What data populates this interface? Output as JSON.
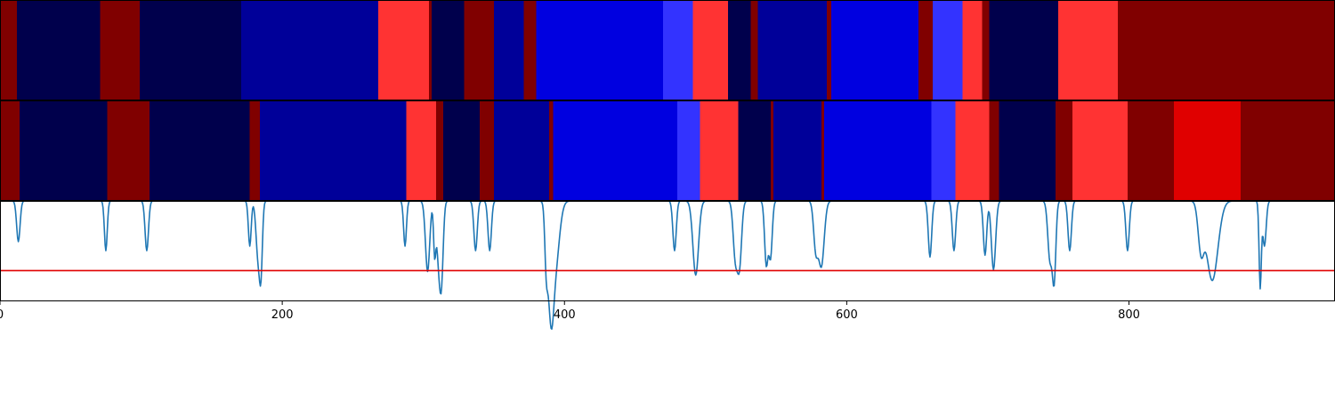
{
  "chart_data": [
    {
      "type": "heatmap",
      "palette": [
        "#00004c",
        "#000099",
        "#0000e0",
        "#3333ff",
        "#ff3333",
        "#e00000",
        "#800000"
      ],
      "segments": [
        [
          0,
          12,
          6
        ],
        [
          12,
          71,
          0
        ],
        [
          71,
          99,
          6
        ],
        [
          99,
          171,
          0
        ],
        [
          171,
          268,
          1
        ],
        [
          268,
          304,
          4
        ],
        [
          304,
          306,
          6
        ],
        [
          306,
          329,
          0
        ],
        [
          329,
          350,
          6
        ],
        [
          350,
          371,
          1
        ],
        [
          371,
          380,
          6
        ],
        [
          380,
          470,
          2
        ],
        [
          470,
          491,
          3
        ],
        [
          491,
          516,
          4
        ],
        [
          516,
          532,
          0
        ],
        [
          532,
          537,
          6
        ],
        [
          537,
          586,
          1
        ],
        [
          586,
          589,
          6
        ],
        [
          589,
          651,
          2
        ],
        [
          651,
          661,
          6
        ],
        [
          661,
          682,
          3
        ],
        [
          682,
          696,
          4
        ],
        [
          696,
          701,
          6
        ],
        [
          701,
          750,
          0
        ],
        [
          750,
          792,
          4
        ],
        [
          792,
          946,
          6
        ]
      ],
      "xlim": [
        0,
        946
      ]
    },
    {
      "type": "heatmap",
      "palette": [
        "#00004c",
        "#000099",
        "#0000e0",
        "#3333ff",
        "#ff3333",
        "#e00000",
        "#800000"
      ],
      "segments": [
        [
          0,
          14,
          6
        ],
        [
          14,
          76,
          0
        ],
        [
          76,
          106,
          6
        ],
        [
          106,
          177,
          0
        ],
        [
          177,
          184,
          6
        ],
        [
          184,
          288,
          1
        ],
        [
          288,
          309,
          4
        ],
        [
          309,
          314,
          6
        ],
        [
          314,
          340,
          0
        ],
        [
          340,
          350,
          6
        ],
        [
          350,
          389,
          1
        ],
        [
          389,
          392,
          6
        ],
        [
          392,
          480,
          2
        ],
        [
          480,
          496,
          3
        ],
        [
          496,
          523,
          4
        ],
        [
          523,
          546,
          0
        ],
        [
          546,
          548,
          6
        ],
        [
          548,
          582,
          1
        ],
        [
          582,
          584,
          6
        ],
        [
          584,
          660,
          2
        ],
        [
          660,
          677,
          3
        ],
        [
          677,
          701,
          4
        ],
        [
          701,
          708,
          6
        ],
        [
          708,
          748,
          0
        ],
        [
          748,
          760,
          6
        ],
        [
          760,
          799,
          4
        ],
        [
          799,
          832,
          6
        ],
        [
          832,
          879,
          5
        ],
        [
          879,
          946,
          6
        ]
      ],
      "xlim": [
        0,
        946
      ]
    },
    {
      "type": "line",
      "xlim": [
        0,
        946
      ],
      "ylim": [
        -0.1,
        1.0
      ],
      "xticks": [
        0,
        200,
        400,
        600,
        800
      ],
      "xtick_labels": [
        "0",
        "200",
        "400",
        "600",
        "800"
      ],
      "baseline": 0.9999,
      "threshold": 0.23,
      "series": [
        {
          "color": "#1f77b4",
          "dips": [
            [
              13,
              0.55,
              1.2
            ],
            [
              75,
              0.45,
              1.0
            ],
            [
              104,
              0.45,
              1.2
            ],
            [
              177,
              0.5,
              1.0
            ],
            [
              183,
              0.35,
              1.5
            ],
            [
              185,
              0.38,
              1.0
            ],
            [
              287,
              0.5,
              1.0
            ],
            [
              303,
              0.22,
              1.5
            ],
            [
              308,
              0.45,
              0.8
            ],
            [
              311,
              0.32,
              1.5
            ],
            [
              313,
              0.33,
              1.2
            ],
            [
              337,
              0.45,
              1.2
            ],
            [
              347,
              0.45,
              1.2
            ],
            [
              387,
              0.45,
              1.0
            ],
            [
              389,
              0.5,
              1.5
            ],
            [
              391,
              0.43,
              1.5
            ],
            [
              393,
              0.2,
              3.0
            ],
            [
              478,
              0.45,
              1.2
            ],
            [
              493,
              0.18,
              2.0
            ],
            [
              521,
              0.4,
              1.5
            ],
            [
              524,
              0.3,
              1.5
            ],
            [
              543,
              0.3,
              1.2
            ],
            [
              546,
              0.38,
              1.2
            ],
            [
              578,
              0.5,
              1.5
            ],
            [
              582,
              0.28,
              2.0
            ],
            [
              659,
              0.38,
              1.2
            ],
            [
              676,
              0.45,
              1.2
            ],
            [
              698,
              0.4,
              1.2
            ],
            [
              704,
              0.24,
              1.5
            ],
            [
              744,
              0.35,
              1.5
            ],
            [
              747,
              0.15,
              1.2
            ],
            [
              758,
              0.45,
              1.2
            ],
            [
              799,
              0.45,
              1.2
            ],
            [
              851,
              0.5,
              2.0
            ],
            [
              859,
              0.12,
              4.0
            ],
            [
              896,
              0.5,
              1.2
            ],
            [
              893,
              0.05,
              0.8
            ]
          ]
        }
      ]
    }
  ]
}
